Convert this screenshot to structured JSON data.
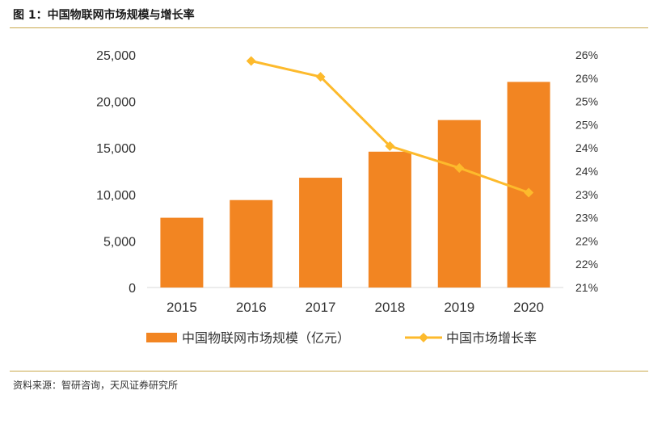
{
  "figure": {
    "title": "图 1：中国物联网市场规模与增长率",
    "source": "资料来源：智研咨询，天风证券研究所"
  },
  "colors": {
    "bar": "#F28522",
    "line": "#FDBA2C",
    "rule": "#C9A84B",
    "text": "#333333"
  },
  "chart_data": {
    "type": "bar",
    "categories": [
      "2015",
      "2016",
      "2017",
      "2018",
      "2019",
      "2020"
    ],
    "series": [
      {
        "name": "中国物联网市场规模（亿元）",
        "type": "bar",
        "axis": "left",
        "values": [
          7500,
          9400,
          11800,
          14600,
          18000,
          22100
        ]
      },
      {
        "name": "中国市场增长率",
        "type": "line",
        "axis": "right",
        "marker": "diamond",
        "values": [
          null,
          0.2587,
          0.2553,
          0.2404,
          0.2357,
          0.2304
        ]
      }
    ],
    "ylim": [
      0,
      25000
    ],
    "yticks": [
      "0",
      "5,000",
      "10,000",
      "15,000",
      "20,000",
      "25,000"
    ],
    "y2lim": [
      0.21,
      0.26
    ],
    "y2ticks": [
      "21%",
      "22%",
      "22%",
      "23%",
      "23%",
      "24%",
      "24%",
      "25%",
      "25%",
      "26%",
      "26%"
    ],
    "grid": false,
    "legend_position": "bottom"
  }
}
